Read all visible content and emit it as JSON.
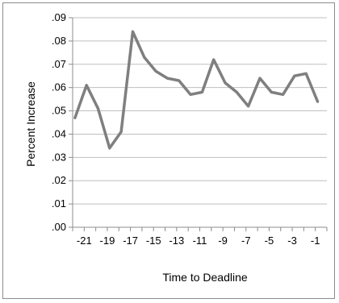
{
  "chart_data": {
    "type": "line",
    "title": "",
    "xlabel": "Time to Deadline",
    "ylabel": "Percent Increase",
    "x": [
      -22,
      -21,
      -20,
      -19,
      -18,
      -17,
      -16,
      -15,
      -14,
      -13,
      -12,
      -11,
      -10,
      -9,
      -8,
      -7,
      -6,
      -5,
      -4,
      -3,
      -2,
      -1,
      0
    ],
    "x_tick_labels": [
      "-21",
      "-19",
      "-17",
      "-15",
      "-13",
      "-11",
      "-9",
      "-7",
      "-5",
      "-3",
      "-1"
    ],
    "x_tick_values": [
      -21,
      -19,
      -17,
      -15,
      -13,
      -11,
      -9,
      -7,
      -5,
      -3,
      -1
    ],
    "y_tick_labels": [
      ".00",
      ".01",
      ".02",
      ".03",
      ".04",
      ".05",
      ".06",
      ".07",
      ".08",
      ".09"
    ],
    "xlim": [
      -22,
      0
    ],
    "ylim": [
      0,
      0.09
    ],
    "grid": true,
    "legend": "none",
    "series": [
      {
        "values": [
          0.047,
          0.061,
          0.051,
          0.034,
          0.041,
          0.084,
          0.073,
          0.067,
          0.064,
          0.063,
          0.057,
          0.058,
          0.072,
          0.062,
          0.058,
          0.052,
          0.064,
          0.058,
          0.057,
          0.065,
          0.066,
          0.054
        ],
        "x": [
          -21.8,
          -20.8,
          -19.8,
          -18.8,
          -17.8,
          -16.8,
          -15.8,
          -14.8,
          -13.8,
          -12.8,
          -11.8,
          -10.8,
          -9.8,
          -8.8,
          -7.8,
          -6.8,
          -5.8,
          -4.8,
          -3.8,
          -2.8,
          -1.8,
          -0.8
        ],
        "color": "#7f7f7f"
      }
    ],
    "colors": {
      "line": "#7f7f7f",
      "grid": "#bfbfbf",
      "axis": "#8c8c8c"
    }
  }
}
